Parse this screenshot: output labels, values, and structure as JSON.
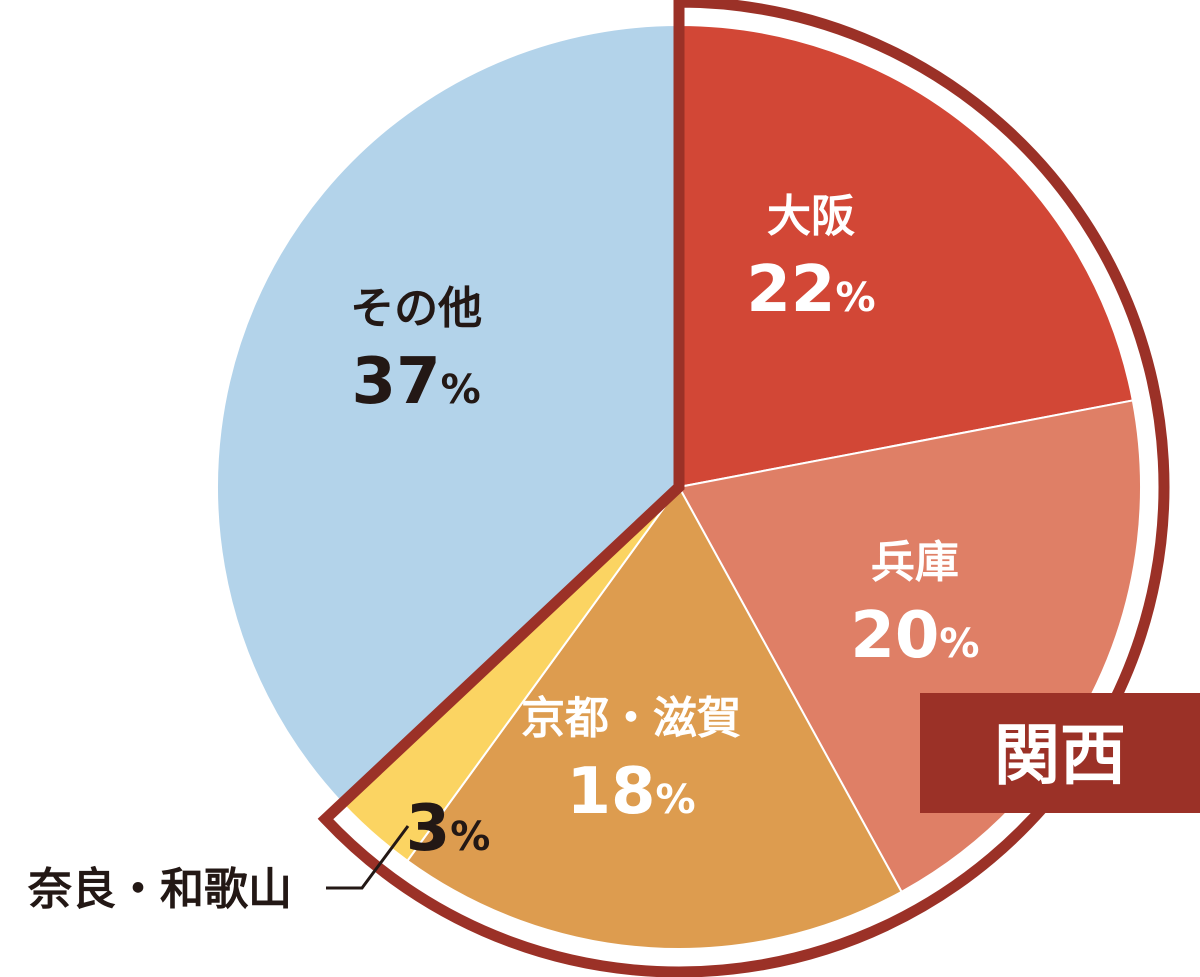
{
  "chart_data": {
    "type": "pie",
    "start": "12 o'clock",
    "direction": "clockwise",
    "slices": [
      {
        "name": "大阪",
        "value": 22,
        "pct_label": "22",
        "color": "#d24736",
        "text_color": "#ffffff"
      },
      {
        "name": "兵庫",
        "value": 20,
        "pct_label": "20",
        "color": "#df7f66",
        "text_color": "#ffffff"
      },
      {
        "name": "京都・滋賀",
        "value": 18,
        "pct_label": "18",
        "color": "#dd9c4f",
        "text_color": "#ffffff"
      },
      {
        "name": "奈良・和歌山",
        "value": 3,
        "pct_label": "3",
        "color": "#fbd462",
        "text_color": "#231815",
        "callout": true
      },
      {
        "name": "その他",
        "value": 37,
        "pct_label": "37",
        "color": "#b3d3ea",
        "text_color": "#231815"
      }
    ],
    "percent_sign": "%",
    "group": {
      "label": "関西",
      "members": [
        "大阪",
        "兵庫",
        "京都・滋賀",
        "奈良・和歌山"
      ],
      "outline_color": "#9b3127",
      "badge_color": "#9b3127",
      "badge_text_color": "#ffffff"
    }
  }
}
